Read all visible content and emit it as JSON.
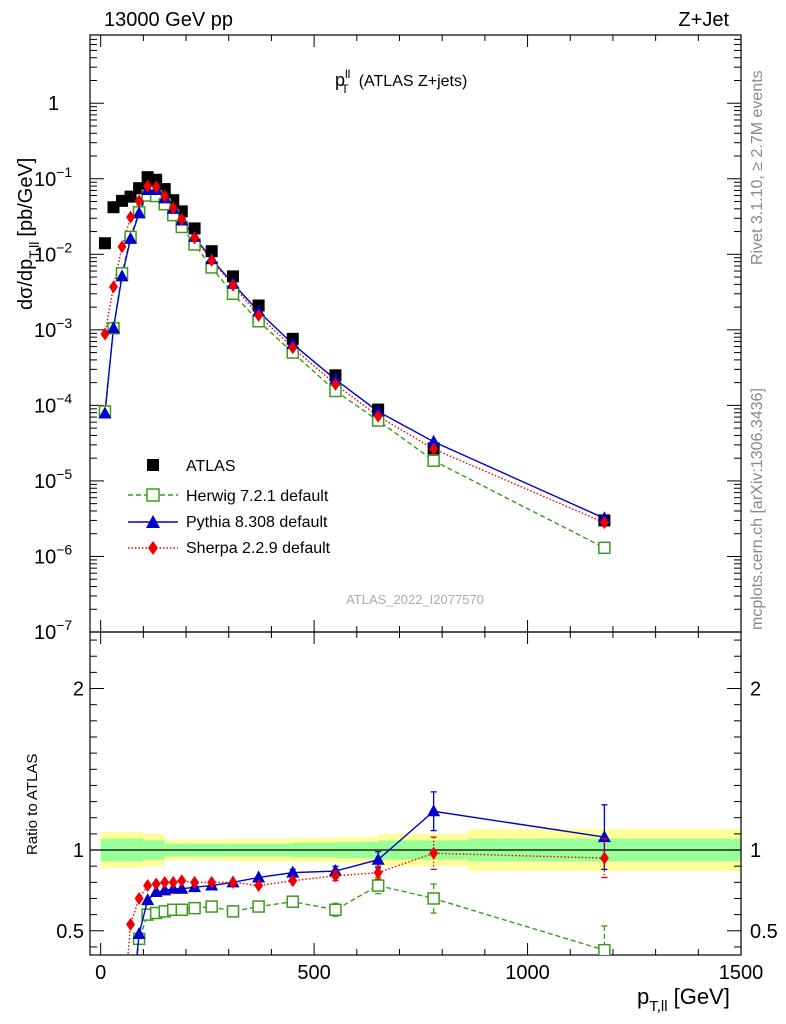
{
  "header": {
    "left": "13000 GeV pp",
    "right": "Z+Jet"
  },
  "plot_title": {
    "main": "p",
    "sup": "ll",
    "sub": "T",
    "rest": "(ATLAS Z+jets)"
  },
  "side_labels": {
    "rivet": "Rivet 3.1.10, ≥ 2.7M events",
    "mcplots": "mcplots.cern.ch [arXiv:1306.3436]"
  },
  "watermark": "ATLAS_2022_I2077570",
  "axes": {
    "ylabel_main": "dσ/dp",
    "ylabel_main_sub": "T,ll",
    "ylabel_main_unit": "[pb/GeV]",
    "ylabel_ratio": "Ratio to ATLAS",
    "xlabel": "p",
    "xlabel_sub": "T,ll",
    "xlabel_unit": "[GeV]"
  },
  "legend": [
    {
      "label": "ATLAS",
      "color": "#000000",
      "marker": "square"
    },
    {
      "label": "Herwig 7.2.1 default",
      "color": "#3a9c1a",
      "marker": "open-square"
    },
    {
      "label": "Pythia 8.308 default",
      "color": "#0000cc",
      "marker": "triangle"
    },
    {
      "label": "Sherpa 2.2.9 default",
      "color": "#ee0000",
      "marker": "diamond"
    }
  ],
  "chart_data": [
    {
      "type": "scatter",
      "panel": "main",
      "y_scale": "log",
      "xlim": [
        -25,
        1500
      ],
      "ylim": [
        1e-07,
        8
      ],
      "x_ticks": [
        0,
        500,
        1000,
        1500
      ],
      "y_ticks": [
        {
          "value": 1e-07,
          "base": "10",
          "exp": "−7"
        },
        {
          "value": 1e-06,
          "base": "10",
          "exp": "−6"
        },
        {
          "value": 1e-05,
          "base": "10",
          "exp": "−5"
        },
        {
          "value": 0.0001,
          "base": "10",
          "exp": "−4"
        },
        {
          "value": 0.001,
          "base": "10",
          "exp": "−3"
        },
        {
          "value": 0.01,
          "base": "10",
          "exp": "−2"
        },
        {
          "value": 0.1,
          "base": "10",
          "exp": "−1"
        },
        {
          "value": 1,
          "base": "1",
          "exp": ""
        }
      ],
      "series": [
        {
          "name": "ATLAS",
          "x": [
            10,
            30,
            50,
            70,
            90,
            110,
            130,
            150,
            170,
            190,
            220,
            260,
            310,
            370,
            450,
            550,
            650,
            780,
            1180
          ],
          "y": [
            0.014,
            0.042,
            0.051,
            0.058,
            0.075,
            0.105,
            0.097,
            0.073,
            0.052,
            0.037,
            0.022,
            0.011,
            0.0051,
            0.0021,
            0.00076,
            0.00025,
            8.8e-05,
            2.7e-05,
            3e-06
          ]
        },
        {
          "name": "Herwig 7.2.1 default",
          "x": [
            10,
            30,
            50,
            70,
            90,
            110,
            130,
            150,
            170,
            190,
            220,
            260,
            310,
            370,
            450,
            550,
            650,
            780,
            1180
          ],
          "y": [
            8.3e-05,
            0.00105,
            0.0056,
            0.017,
            0.036,
            0.06,
            0.059,
            0.046,
            0.033,
            0.023,
            0.0135,
            0.0067,
            0.003,
            0.0013,
            0.0005,
            0.000155,
            6.3e-05,
            1.85e-05,
            1.3e-06
          ]
        },
        {
          "name": "Pythia 8.308 default",
          "x": [
            10,
            30,
            50,
            70,
            90,
            110,
            130,
            150,
            170,
            190,
            220,
            260,
            310,
            370,
            450,
            550,
            650,
            780,
            1180
          ],
          "y": [
            7.8e-05,
            0.00105,
            0.0051,
            0.016,
            0.035,
            0.071,
            0.071,
            0.055,
            0.04,
            0.028,
            0.017,
            0.0086,
            0.0041,
            0.00175,
            0.00065,
            0.00022,
            8.3e-05,
            3.3e-05,
            3.2e-06
          ]
        },
        {
          "name": "Sherpa 2.2.9 default",
          "x": [
            10,
            30,
            50,
            70,
            90,
            110,
            130,
            150,
            170,
            190,
            220,
            260,
            310,
            370,
            450,
            550,
            650,
            780,
            1180
          ],
          "y": [
            0.00088,
            0.0037,
            0.0126,
            0.031,
            0.051,
            0.08,
            0.078,
            0.059,
            0.041,
            0.029,
            0.0165,
            0.0083,
            0.0039,
            0.00155,
            0.00058,
            0.00019,
            7.2e-05,
            2.65e-05,
            2.8e-06
          ]
        }
      ]
    },
    {
      "type": "line",
      "panel": "ratio",
      "xlim": [
        -25,
        1500
      ],
      "ylim": [
        0.35,
        2.35
      ],
      "x_ticks": [
        0,
        500,
        1000,
        1500
      ],
      "y_ticks": [
        0.5,
        1,
        2
      ],
      "bands": {
        "edges": [
          0,
          100,
          150,
          200,
          300,
          450,
          550,
          650,
          860,
          1500
        ],
        "inner": [
          0.07,
          0.06,
          0.04,
          0.04,
          0.04,
          0.045,
          0.05,
          0.06,
          0.07
        ],
        "outer": [
          0.11,
          0.1,
          0.065,
          0.065,
          0.07,
          0.075,
          0.08,
          0.1,
          0.13
        ]
      },
      "series": [
        {
          "name": "Herwig 7.2.1 default",
          "x": [
            90,
            110,
            130,
            150,
            170,
            190,
            220,
            260,
            310,
            370,
            450,
            550,
            650,
            780,
            1180
          ],
          "y": [
            0.45,
            0.6,
            0.61,
            0.62,
            0.63,
            0.63,
            0.64,
            0.65,
            0.62,
            0.65,
            0.68,
            0.63,
            0.78,
            0.7,
            0.38
          ],
          "err": [
            0,
            0,
            0,
            0,
            0,
            0,
            0,
            0,
            0,
            0,
            0,
            0.04,
            0.05,
            0.09,
            0.15
          ]
        },
        {
          "name": "Pythia 8.308 default",
          "x": [
            90,
            110,
            130,
            150,
            170,
            190,
            220,
            260,
            310,
            370,
            450,
            550,
            650,
            780,
            1180
          ],
          "y": [
            0.48,
            0.69,
            0.74,
            0.75,
            0.76,
            0.76,
            0.77,
            0.78,
            0.8,
            0.83,
            0.86,
            0.87,
            0.94,
            1.24,
            1.08
          ],
          "err": [
            0,
            0,
            0,
            0,
            0,
            0,
            0,
            0,
            0,
            0,
            0.02,
            0.03,
            0.05,
            0.12,
            0.2
          ]
        },
        {
          "name": "Sherpa 2.2.9 default",
          "x": [
            70,
            90,
            110,
            130,
            150,
            170,
            190,
            220,
            260,
            310,
            370,
            450,
            550,
            650,
            780,
            1180
          ],
          "y": [
            0.54,
            0.7,
            0.78,
            0.79,
            0.8,
            0.8,
            0.81,
            0.8,
            0.8,
            0.8,
            0.78,
            0.81,
            0.84,
            0.86,
            0.98,
            0.95
          ],
          "err": [
            0,
            0,
            0,
            0,
            0,
            0,
            0,
            0,
            0,
            0,
            0,
            0,
            0.03,
            0.04,
            0.1,
            0.12
          ]
        }
      ]
    }
  ]
}
